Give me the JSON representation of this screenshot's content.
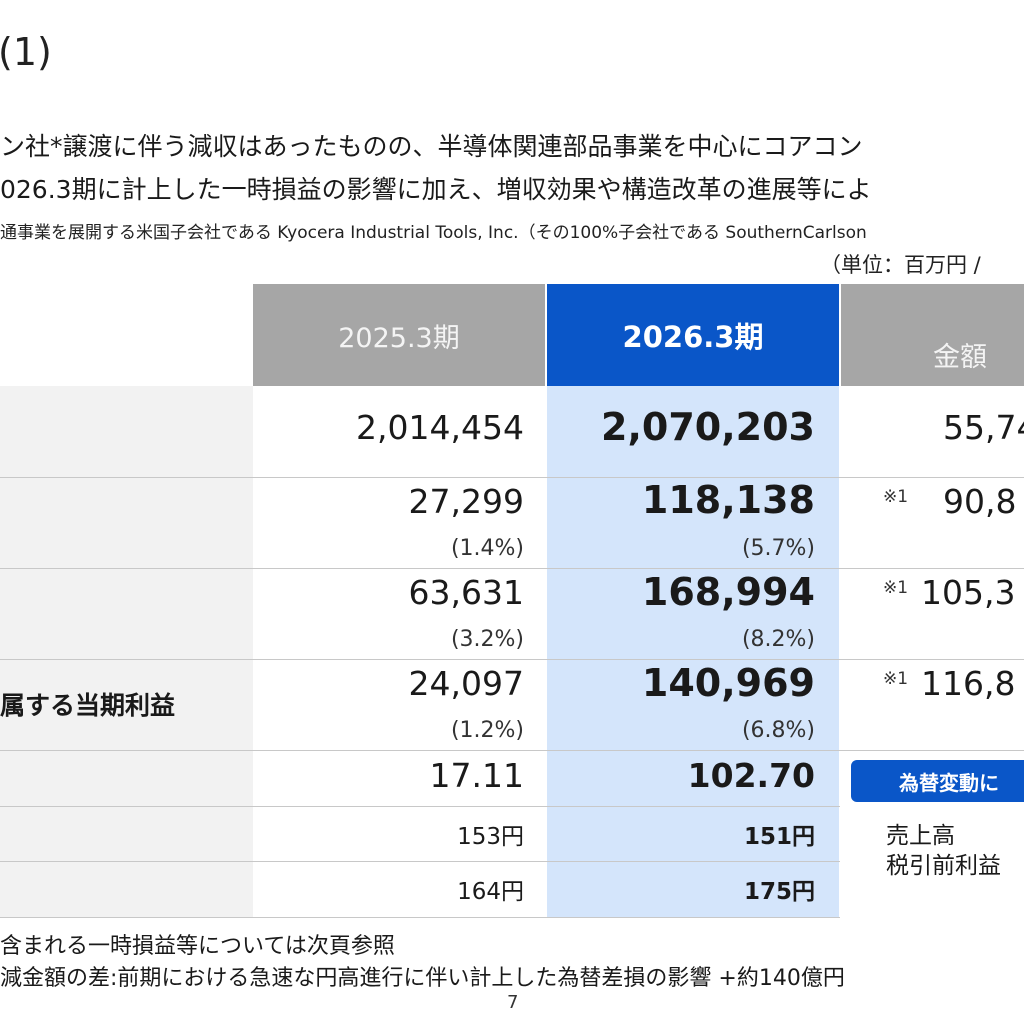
{
  "slide": {
    "title": "(1)",
    "lead_line1": "ン社*譲渡に伴う減収はあったものの、半導体関連部品事業を中心にコアコン",
    "lead_line2": "026.3期に計上した一時損益の影響に加え、増収効果や構造改革の進展等によ",
    "note": "通事業を展開する米国子会社である Kyocera Industrial Tools, Inc.（その100%子会社である SouthernCarlson",
    "unit": "（単位：百万円 /",
    "page_number": "7"
  },
  "table": {
    "headers": {
      "prev": "2025.3期",
      "curr": "2026.3期",
      "amount": "金額"
    },
    "rows": [
      {
        "label": "",
        "prev": "2,014,454",
        "curr": "2,070,203",
        "diff": "55,74",
        "mark": ""
      },
      {
        "label": "",
        "prev": "27,299",
        "prev_pct": "(1.4%)",
        "curr": "118,138",
        "curr_pct": "(5.7%)",
        "diff": "90,8",
        "mark": "※1"
      },
      {
        "label": "",
        "prev": "63,631",
        "prev_pct": "(3.2%)",
        "curr": "168,994",
        "curr_pct": "(8.2%)",
        "diff": "105,3",
        "mark": "※1"
      },
      {
        "label": "属する当期利益",
        "prev": "24,097",
        "prev_pct": "(1.2%)",
        "curr": "140,969",
        "curr_pct": "(6.8%)",
        "diff": "116,8",
        "mark": "※1"
      },
      {
        "label": "",
        "prev": "17.11",
        "curr": "102.70"
      },
      {
        "label": "",
        "prev": "153円",
        "curr": "151円"
      },
      {
        "label": "",
        "prev": "164円",
        "curr": "175円"
      }
    ]
  },
  "fx_box": {
    "title": "為替変動に",
    "items": [
      "売上高",
      "税引前利益"
    ]
  },
  "footnotes": [
    "含まれる一時損益等については次頁参照",
    "減金額の差:前期における急速な円高進行に伴い計上した為替差損の影響 +約140億円"
  ]
}
